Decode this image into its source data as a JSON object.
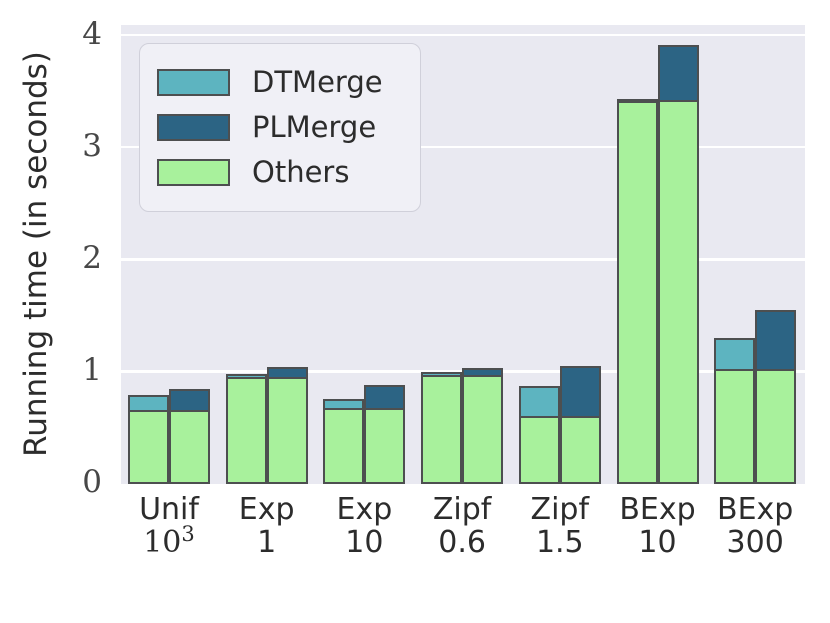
{
  "chart_data": {
    "type": "bar",
    "title": "",
    "ylabel": "Running time (in seconds)",
    "yticks": [
      "0",
      "1",
      "2",
      "3",
      "4"
    ],
    "ylim": [
      0,
      4.09
    ],
    "grid": "horizontal",
    "legend_position": "upper-left",
    "legend": [
      {
        "name": "DTMerge",
        "color": "#5db4c0"
      },
      {
        "name": "PLMerge",
        "color": "#2c6484"
      },
      {
        "name": "Others",
        "color": "#a8f19c"
      }
    ],
    "categories": [
      "Unif 10^3",
      "Exp 1",
      "Exp 10",
      "Zipf 0.6",
      "Zipf 1.5",
      "BExp 10",
      "BExp 300"
    ],
    "series": [
      {
        "name": "DTMerge total",
        "values": [
          0.79,
          0.98,
          0.76,
          1.0,
          0.87,
          3.43,
          1.3
        ]
      },
      {
        "name": "PLMerge total",
        "values": [
          0.85,
          1.04,
          0.88,
          1.03,
          1.05,
          3.91,
          1.55
        ]
      },
      {
        "name": "Others shared base",
        "values": [
          0.66,
          0.95,
          0.68,
          0.97,
          0.61,
          3.42,
          1.02
        ]
      }
    ],
    "groups": [
      {
        "label_top": "Unif",
        "label_bottom": "10",
        "label_sup": "3",
        "others": 0.66,
        "dtmerge": 0.79,
        "plmerge": 0.85
      },
      {
        "label_top": "Exp",
        "label_bottom": "1",
        "others": 0.95,
        "dtmerge": 0.98,
        "plmerge": 1.04
      },
      {
        "label_top": "Exp",
        "label_bottom": "10",
        "others": 0.68,
        "dtmerge": 0.76,
        "plmerge": 0.88
      },
      {
        "label_top": "Zipf",
        "label_bottom": "0.6",
        "others": 0.97,
        "dtmerge": 1.0,
        "plmerge": 1.03
      },
      {
        "label_top": "Zipf",
        "label_bottom": "1.5",
        "others": 0.61,
        "dtmerge": 0.87,
        "plmerge": 1.05
      },
      {
        "label_top": "BExp",
        "label_bottom": "10",
        "others": 3.42,
        "dtmerge": 3.43,
        "plmerge": 3.91
      },
      {
        "label_top": "BExp",
        "label_bottom": "300",
        "others": 1.02,
        "dtmerge": 1.3,
        "plmerge": 1.55
      }
    ],
    "colors": {
      "plot_background": "#e9e9f1",
      "gridline": "#ffffff",
      "bar_edge": "#4d4f50",
      "dtmerge": "#5db4c0",
      "plmerge": "#2c6484",
      "others": "#a8f19c",
      "text": "#2c2c2c"
    }
  }
}
